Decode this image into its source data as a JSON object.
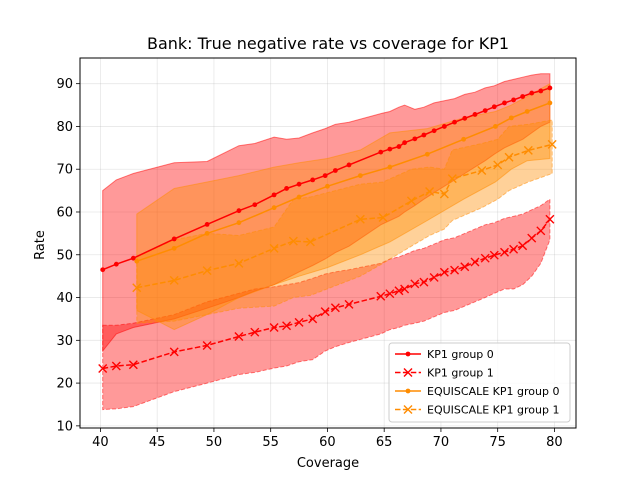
{
  "chart_data": {
    "type": "line",
    "title": "Bank: True negative rate vs coverage for KP1",
    "xlabel": "Coverage",
    "ylabel": "Rate",
    "xlim": [
      38.2,
      81.9
    ],
    "ylim": [
      9.5,
      96
    ],
    "xticks": [
      40,
      45,
      50,
      55,
      60,
      65,
      70,
      75,
      80
    ],
    "yticks": [
      10,
      20,
      30,
      40,
      50,
      60,
      70,
      80,
      90
    ],
    "grid": true,
    "legend_position": "lower-right",
    "series": [
      {
        "name": "KP1 group 0",
        "color": "#ff0000",
        "line_style": "solid",
        "marker": "dot",
        "x": [
          40.2,
          41.4,
          42.9,
          46.5,
          49.4,
          52.2,
          53.6,
          55.3,
          56.4,
          57.5,
          58.7,
          59.8,
          60.7,
          61.9,
          64.7,
          65.5,
          66.3,
          66.8,
          67.7,
          68.5,
          69.4,
          70.3,
          71.2,
          72.1,
          73.0,
          73.9,
          74.7,
          75.6,
          76.4,
          77.2,
          78.0,
          78.8,
          79.6
        ],
        "y": [
          46.5,
          47.8,
          49.2,
          53.7,
          57.1,
          60.3,
          61.7,
          64.0,
          65.5,
          66.5,
          67.5,
          68.5,
          69.7,
          71.0,
          74.0,
          74.7,
          75.3,
          76.2,
          77.1,
          78.0,
          79.0,
          80.0,
          81.0,
          81.9,
          82.8,
          83.7,
          84.6,
          85.5,
          86.2,
          87.0,
          87.8,
          88.3,
          89.0
        ],
        "band_low": [
          27.5,
          31.5,
          33.0,
          35.0,
          37.5,
          40.0,
          41.5,
          43.0,
          44.5,
          46.0,
          47.5,
          49.0,
          50.5,
          52.0,
          57.0,
          58.0,
          59.0,
          60.0,
          61.5,
          63.0,
          64.5,
          66.0,
          67.5,
          69.0,
          70.5,
          72.0,
          73.5,
          75.0,
          76.0,
          77.0,
          78.5,
          80.0,
          81.0
        ],
        "band_high": [
          65.0,
          67.5,
          69.0,
          71.5,
          71.8,
          75.5,
          76.0,
          77.5,
          77.0,
          77.3,
          78.5,
          79.5,
          80.5,
          81.0,
          83.0,
          83.5,
          84.5,
          85.0,
          84.0,
          84.5,
          85.5,
          86.0,
          86.5,
          87.5,
          88.0,
          89.0,
          89.5,
          90.5,
          91.0,
          91.5,
          92.0,
          92.3,
          92.3
        ]
      },
      {
        "name": "KP1 group 1",
        "color": "#ff0000",
        "line_style": "dashed",
        "marker": "x",
        "x": [
          40.2,
          41.4,
          42.9,
          46.5,
          49.4,
          52.2,
          53.6,
          55.3,
          56.4,
          57.5,
          58.7,
          59.8,
          60.7,
          61.9,
          64.7,
          65.5,
          66.3,
          66.8,
          67.7,
          68.5,
          69.4,
          70.3,
          71.2,
          72.1,
          73.0,
          73.9,
          74.7,
          75.6,
          76.4,
          77.2,
          78.0,
          78.8,
          79.6
        ],
        "y": [
          23.4,
          24.0,
          24.3,
          27.3,
          28.8,
          30.9,
          31.9,
          33.0,
          33.4,
          34.2,
          35.0,
          36.7,
          37.6,
          38.4,
          40.3,
          40.9,
          41.6,
          42.0,
          43.2,
          43.6,
          44.7,
          45.9,
          46.4,
          47.2,
          48.3,
          49.2,
          49.9,
          50.6,
          51.3,
          52.1,
          53.9,
          55.6,
          58.3
        ],
        "band_low": [
          13.8,
          14.0,
          14.5,
          18.0,
          20.0,
          22.0,
          22.5,
          23.5,
          24.0,
          25.0,
          25.5,
          27.5,
          28.5,
          29.5,
          31.5,
          32.5,
          33.0,
          33.5,
          34.0,
          34.5,
          35.5,
          36.5,
          37.0,
          38.0,
          39.0,
          40.0,
          41.0,
          42.0,
          42.0,
          43.0,
          45.0,
          48.0,
          53.5
        ],
        "band_high": [
          33.5,
          33.5,
          34.0,
          36.0,
          39.0,
          41.0,
          42.0,
          42.5,
          43.0,
          43.5,
          44.5,
          45.5,
          46.0,
          46.5,
          48.0,
          49.0,
          49.5,
          50.0,
          51.0,
          51.5,
          52.5,
          53.5,
          54.0,
          55.0,
          56.0,
          57.0,
          57.5,
          58.5,
          59.0,
          59.5,
          60.5,
          61.5,
          63.0
        ]
      },
      {
        "name": "EQUISCALE KP1 group 0",
        "color": "#ff8c00",
        "line_style": "solid",
        "marker": "dot",
        "x": [
          43.2,
          46.5,
          49.4,
          52.2,
          55.3,
          57.5,
          60.0,
          62.9,
          65.5,
          68.8,
          72.0,
          74.8,
          76.2,
          77.6,
          79.6
        ],
        "y": [
          48.5,
          51.5,
          55.0,
          57.5,
          61.0,
          63.5,
          66.0,
          68.5,
          70.5,
          73.5,
          77.0,
          80.0,
          82.0,
          83.5,
          85.5
        ],
        "band_low": [
          37.0,
          32.5,
          36.0,
          40.0,
          43.0,
          45.0,
          47.0,
          50.0,
          53.0,
          58.0,
          63.0,
          67.0,
          70.0,
          72.0,
          72.5
        ],
        "band_high": [
          59.5,
          65.5,
          67.0,
          68.5,
          70.5,
          71.5,
          72.5,
          74.5,
          78.5,
          79.5,
          82.0,
          83.5,
          85.0,
          87.0,
          90.0
        ]
      },
      {
        "name": "EQUISCALE KP1 group 1",
        "color": "#ff8c00",
        "line_style": "dashed",
        "marker": "x",
        "x": [
          43.2,
          46.5,
          49.4,
          52.2,
          55.3,
          57.0,
          58.5,
          62.9,
          64.9,
          67.4,
          69.0,
          70.3,
          71.0,
          73.6,
          75.0,
          76.0,
          77.7,
          79.8
        ],
        "y": [
          42.3,
          44.0,
          46.3,
          48.0,
          51.5,
          53.2,
          53.0,
          58.3,
          58.7,
          62.6,
          64.8,
          64.2,
          67.8,
          69.7,
          71.0,
          72.8,
          74.4,
          75.8
        ],
        "band_low": [
          34.0,
          34.5,
          36.0,
          37.5,
          38.0,
          40.0,
          40.5,
          45.0,
          48.0,
          52.0,
          54.5,
          56.0,
          58.0,
          61.0,
          63.0,
          65.0,
          67.0,
          69.0
        ],
        "band_high": [
          49.5,
          53.5,
          55.0,
          54.5,
          56.5,
          63.0,
          63.5,
          66.5,
          67.0,
          70.0,
          70.5,
          70.0,
          74.5,
          76.0,
          77.0,
          80.0,
          80.5,
          81.5
        ]
      }
    ]
  }
}
